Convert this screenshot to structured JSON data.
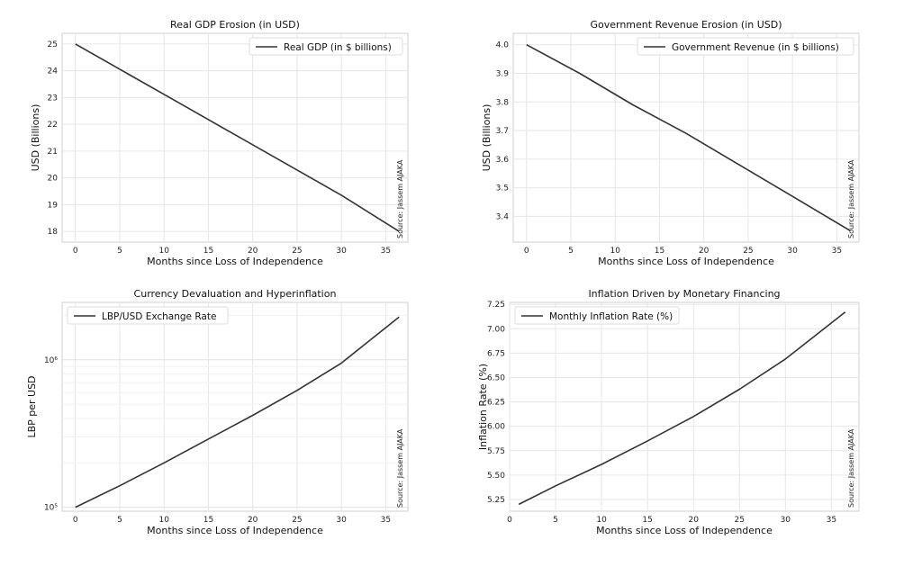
{
  "chart_data": [
    {
      "type": "line",
      "title": "Real GDP Erosion (in USD)",
      "xlabel": "Months since Loss of Independence",
      "ylabel": "USD (Billions)",
      "xlim": [
        -1.5,
        37.5
      ],
      "ylim": [
        17.6,
        25.4
      ],
      "xticks": [
        "0",
        "5",
        "10",
        "15",
        "20",
        "25",
        "30",
        "35"
      ],
      "yticks": [
        "18",
        "19",
        "20",
        "21",
        "22",
        "23",
        "24",
        "25"
      ],
      "yscale": "linear",
      "grid": true,
      "legend": "top-right",
      "annotation": "Source: Jassem AJAKA",
      "series": [
        {
          "name": "Real GDP (in $ billions)",
          "color": "#333333",
          "x": [
            0,
            6,
            12,
            18,
            24,
            30,
            36.5
          ],
          "y": [
            25.0,
            23.87,
            22.74,
            21.61,
            20.48,
            19.35,
            18.0
          ]
        }
      ]
    },
    {
      "type": "line",
      "title": "Government Revenue Erosion (in USD)",
      "xlabel": "Months since Loss of Independence",
      "ylabel": "USD (Billions)",
      "xlim": [
        -1.5,
        37.5
      ],
      "ylim": [
        3.31,
        4.04
      ],
      "xticks": [
        "0",
        "5",
        "10",
        "15",
        "20",
        "25",
        "30",
        "35"
      ],
      "yticks": [
        "3.4",
        "3.5",
        "3.6",
        "3.7",
        "3.8",
        "3.9",
        "4.0"
      ],
      "yscale": "linear",
      "grid": true,
      "legend": "top-right",
      "annotation": "Source: Jassem AJAKA",
      "series": [
        {
          "name": "Government Revenue (in $ billions)",
          "color": "#333333",
          "x": [
            0,
            6,
            12,
            18,
            24,
            30,
            36.5
          ],
          "y": [
            4.0,
            3.9,
            3.79,
            3.69,
            3.58,
            3.47,
            3.35
          ]
        }
      ]
    },
    {
      "type": "line",
      "title": "Currency Devaluation and Hyperinflation",
      "xlabel": "Months since Loss of Independence",
      "ylabel": "LBP per USD",
      "xlim": [
        -1.5,
        37.5
      ],
      "ylim": [
        94000,
        2450000
      ],
      "xticks": [
        "0",
        "5",
        "10",
        "15",
        "20",
        "25",
        "30",
        "35"
      ],
      "yticks_log": [
        {
          "label": "10⁵",
          "value": 100000
        },
        {
          "label": "10⁶",
          "value": 1000000
        }
      ],
      "yscale": "log",
      "grid": true,
      "legend": "top-left",
      "annotation": "Source: Jassem AJAKA",
      "series": [
        {
          "name": "LBP/USD Exchange Rate",
          "color": "#333333",
          "x": [
            0,
            5,
            10,
            15,
            20,
            25,
            30,
            36.5
          ],
          "y": [
            100000,
            140000,
            200000,
            290000,
            420000,
            620000,
            950000,
            1950000
          ]
        }
      ]
    },
    {
      "type": "line",
      "title": "Inflation Driven by Monetary Financing",
      "xlabel": "Months since Loss of Independence",
      "ylabel": "Inflation Rate (%)",
      "xlim": [
        0,
        38
      ],
      "ylim": [
        5.13,
        7.27
      ],
      "xticks": [
        "0",
        "5",
        "10",
        "15",
        "20",
        "25",
        "30",
        "35"
      ],
      "yticks": [
        "5.25",
        "5.50",
        "5.75",
        "6.00",
        "6.25",
        "6.50",
        "6.75",
        "7.00",
        "7.25"
      ],
      "yscale": "linear",
      "grid": true,
      "legend": "top-left",
      "annotation": "Source: Jassem AJAKA",
      "series": [
        {
          "name": "Monthly Inflation Rate (%)",
          "color": "#333333",
          "x": [
            1,
            5,
            10,
            15,
            20,
            25,
            30,
            36.5
          ],
          "y": [
            5.2,
            5.39,
            5.61,
            5.85,
            6.1,
            6.38,
            6.69,
            7.17
          ]
        }
      ]
    }
  ]
}
